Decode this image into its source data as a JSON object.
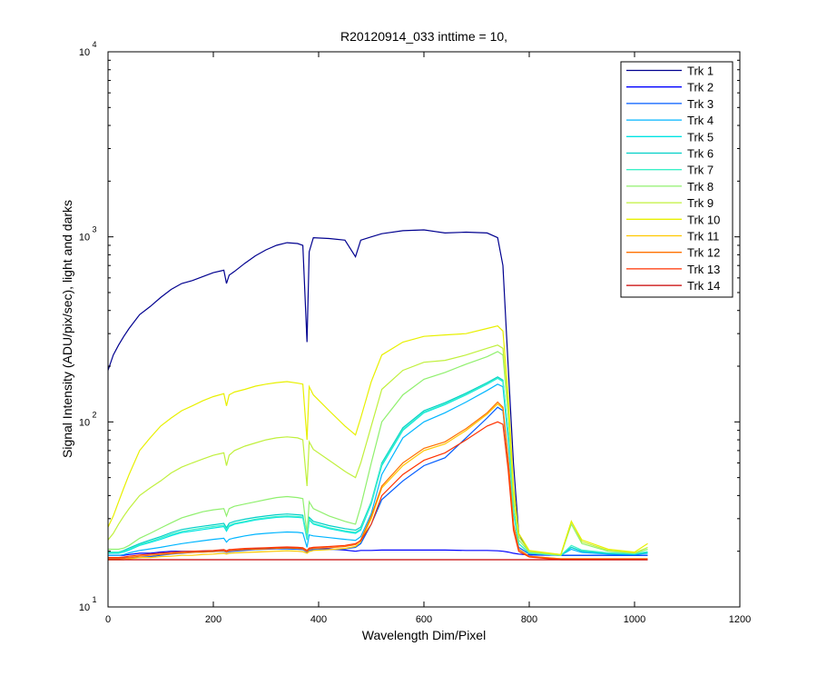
{
  "chart_data": {
    "type": "line",
    "title": "R20120914_033 inttime = 10,",
    "xlabel": "Wavelength Dim/Pixel",
    "ylabel": "Signal Intensity (ADU/pix/sec), light and darks",
    "xlim": [
      0,
      1200
    ],
    "ylim": [
      10,
      10000
    ],
    "yscale": "log",
    "grid": false,
    "legend_position": "top-right",
    "x_ticks": [
      0,
      200,
      400,
      600,
      800,
      1000,
      1200
    ],
    "y_ticks": [
      {
        "base": "10",
        "exp": "1",
        "value": 10
      },
      {
        "base": "10",
        "exp": "2",
        "value": 100
      },
      {
        "base": "10",
        "exp": "3",
        "value": 1000
      },
      {
        "base": "10",
        "exp": "4",
        "value": 10000
      }
    ],
    "x_sample": [
      0,
      10,
      20,
      30,
      40,
      60,
      80,
      100,
      120,
      140,
      160,
      180,
      200,
      220,
      225,
      230,
      240,
      260,
      280,
      300,
      320,
      340,
      360,
      370,
      378,
      382,
      390,
      420,
      450,
      470,
      480,
      500,
      520,
      560,
      600,
      640,
      680,
      720,
      740,
      750,
      760,
      770,
      780,
      800,
      860,
      880,
      900,
      950,
      1000,
      1025
    ],
    "series": [
      {
        "name": "Trk 1",
        "color": "#00008f",
        "values": [
          190,
          230,
          260,
          290,
          320,
          380,
          420,
          470,
          520,
          560,
          580,
          610,
          640,
          660,
          560,
          620,
          650,
          720,
          790,
          850,
          900,
          930,
          920,
          900,
          270,
          830,
          990,
          980,
          960,
          780,
          960,
          1000,
          1040,
          1080,
          1090,
          1050,
          1060,
          1050,
          990,
          700,
          200,
          60,
          25,
          19.5,
          19,
          19,
          19,
          19,
          19,
          19
        ]
      },
      {
        "name": "Trk 2",
        "color": "#0000ff",
        "values": [
          19,
          19,
          19,
          19,
          19.2,
          19.5,
          19.5,
          19.8,
          20,
          20,
          20,
          20,
          20.1,
          20.2,
          19.9,
          20.2,
          20.2,
          20.5,
          20.6,
          20.7,
          20.8,
          20.9,
          20.8,
          20.8,
          19.8,
          20.6,
          20.8,
          20.6,
          20.3,
          20,
          20.2,
          20.2,
          20.3,
          20.3,
          20.3,
          20.3,
          20.2,
          20.2,
          20.1,
          20,
          19.8,
          19.5,
          19.3,
          19.1,
          19,
          19,
          19,
          19,
          19,
          19
        ]
      },
      {
        "name": "Trk 3",
        "color": "#005bff",
        "values": [
          18.5,
          18.5,
          18.5,
          18.5,
          18.5,
          18.5,
          18.7,
          19,
          19.3,
          19.5,
          19.7,
          19.8,
          19.9,
          20,
          19.7,
          19.9,
          20,
          20.2,
          20.4,
          20.5,
          20.6,
          20.6,
          20.5,
          20.4,
          19.8,
          20.3,
          20.4,
          20.4,
          20.6,
          21,
          22,
          28,
          38,
          48,
          58,
          64,
          82,
          105,
          120,
          115,
          60,
          28,
          21,
          19.3,
          19,
          19,
          19,
          19,
          19,
          19
        ]
      },
      {
        "name": "Trk 4",
        "color": "#00b5ff",
        "values": [
          19,
          19,
          19,
          19.2,
          19.6,
          20.2,
          20.6,
          21,
          21.5,
          22,
          22.4,
          22.8,
          23.2,
          23.5,
          22.4,
          23.2,
          23.6,
          24.2,
          24.7,
          25,
          25.2,
          25.4,
          25.3,
          25.1,
          21,
          24.5,
          24.2,
          23.7,
          23.2,
          22.9,
          24,
          32,
          52,
          82,
          100,
          112,
          128,
          148,
          160,
          155,
          80,
          32,
          22,
          19.5,
          19,
          20.5,
          19.7,
          19.3,
          19.2,
          19.5
        ]
      },
      {
        "name": "Trk 5",
        "color": "#00e4e4",
        "values": [
          19.5,
          19.5,
          19.5,
          19.8,
          20.3,
          21.5,
          22.3,
          23.2,
          24.3,
          25.2,
          25.7,
          26.2,
          26.7,
          27.2,
          25.7,
          27.2,
          28,
          28.7,
          29.5,
          30,
          30.5,
          30.7,
          30.5,
          30.3,
          23,
          29.5,
          28,
          26.5,
          25.5,
          25,
          26,
          36,
          58,
          90,
          112,
          124,
          140,
          160,
          172,
          165,
          85,
          33,
          22,
          19.5,
          19,
          21,
          20,
          19.5,
          19.3,
          19.7
        ]
      },
      {
        "name": "Trk 6",
        "color": "#00d0c8",
        "values": [
          19.8,
          19.8,
          19.8,
          20.2,
          20.8,
          22,
          23,
          24,
          25.2,
          26.2,
          26.8,
          27.3,
          27.8,
          28.3,
          26.8,
          28.3,
          29,
          29.8,
          30.5,
          31,
          31.5,
          31.8,
          31.5,
          31.3,
          23.5,
          30.5,
          29,
          27.5,
          26.5,
          26,
          27,
          37,
          60,
          93,
          115,
          127,
          143,
          163,
          175,
          168,
          86,
          33,
          22,
          19.5,
          19,
          21,
          20,
          19.5,
          19.3,
          19.7
        ]
      },
      {
        "name": "Trk 7",
        "color": "#3cf0c8",
        "values": [
          19.8,
          19.8,
          19.8,
          20,
          20.5,
          21.7,
          22.6,
          23.6,
          24.7,
          25.6,
          26.2,
          26.7,
          27.2,
          27.6,
          26.2,
          27.6,
          28.3,
          29,
          29.8,
          30.3,
          30.8,
          31,
          30.8,
          30.6,
          23.2,
          29.8,
          28.3,
          26.8,
          25.8,
          25.3,
          26.4,
          36.5,
          59,
          91,
          113,
          125,
          141,
          161,
          173,
          166,
          85,
          33,
          22,
          19.5,
          19,
          21.5,
          20.3,
          19.6,
          19.4,
          19.9
        ]
      },
      {
        "name": "Trk 8",
        "color": "#90f06e",
        "values": [
          20.5,
          20.5,
          20.5,
          20.8,
          21.5,
          23.5,
          25,
          26.7,
          28.5,
          30.3,
          31.5,
          32.7,
          33.5,
          34,
          31,
          34,
          35,
          36,
          37,
          38,
          39,
          39.5,
          39,
          38.5,
          25,
          37,
          34,
          31,
          29,
          28,
          35,
          60,
          100,
          140,
          170,
          185,
          205,
          225,
          240,
          230,
          110,
          38,
          23,
          19.8,
          19,
          28,
          22,
          20,
          19.5,
          20.5
        ]
      },
      {
        "name": "Trk 9",
        "color": "#c0f03c",
        "values": [
          23,
          25,
          28,
          31,
          34,
          40,
          44,
          48,
          53,
          57,
          60,
          63,
          66,
          68,
          58,
          66,
          70,
          74,
          77,
          80,
          82,
          83,
          82,
          80,
          45,
          78,
          71,
          62,
          54,
          50,
          60,
          95,
          150,
          190,
          210,
          215,
          230,
          250,
          260,
          250,
          120,
          40,
          24,
          20,
          19.2,
          29,
          22.5,
          20.2,
          19.6,
          21
        ]
      },
      {
        "name": "Trk 10",
        "color": "#e8f000",
        "values": [
          27,
          31,
          37,
          44,
          52,
          70,
          82,
          95,
          105,
          115,
          122,
          130,
          137,
          142,
          122,
          140,
          145,
          150,
          156,
          160,
          163,
          165,
          162,
          160,
          80,
          155,
          140,
          115,
          95,
          85,
          105,
          165,
          230,
          270,
          290,
          295,
          300,
          320,
          330,
          310,
          140,
          45,
          25,
          20.2,
          19.2,
          29,
          23,
          20.5,
          19.8,
          22
        ]
      },
      {
        "name": "Trk 11",
        "color": "#ffc800",
        "values": [
          18,
          18,
          18,
          18,
          18.2,
          18.5,
          18.5,
          18.7,
          18.8,
          19,
          19,
          19.2,
          19.3,
          19.5,
          19.3,
          19.5,
          19.6,
          19.7,
          19.8,
          19.9,
          20,
          20.1,
          20,
          19.9,
          19.5,
          19.9,
          20.2,
          20.4,
          20.7,
          21.2,
          22.5,
          30,
          44,
          58,
          70,
          76,
          90,
          110,
          125,
          118,
          62,
          28,
          20.5,
          18.8,
          18.2,
          18.2,
          18.2,
          18.2,
          18.2,
          18.2
        ]
      },
      {
        "name": "Trk 12",
        "color": "#ff7000",
        "values": [
          18.2,
          18.2,
          18.2,
          18.3,
          18.5,
          18.8,
          19,
          19.2,
          19.4,
          19.6,
          19.7,
          19.8,
          19.9,
          20.1,
          19.8,
          20.1,
          20.2,
          20.4,
          20.5,
          20.6,
          20.7,
          20.8,
          20.7,
          20.6,
          19.9,
          20.5,
          20.7,
          20.9,
          21.2,
          21.7,
          23,
          31,
          45,
          60,
          72,
          78,
          92,
          112,
          128,
          120,
          63,
          28,
          20.5,
          18.8,
          18.2,
          18.2,
          18.2,
          18.2,
          18.2,
          18.2
        ]
      },
      {
        "name": "Trk 13",
        "color": "#ff3200",
        "values": [
          18.5,
          18.5,
          18.5,
          18.6,
          18.8,
          19.1,
          19.3,
          19.5,
          19.7,
          19.9,
          20,
          20.1,
          20.2,
          20.4,
          20.1,
          20.4,
          20.5,
          20.7,
          20.8,
          20.9,
          21,
          21.1,
          21,
          20.9,
          20.2,
          20.8,
          21,
          21.2,
          21.5,
          22,
          22.8,
          28,
          40,
          52,
          62,
          68,
          80,
          95,
          100,
          97,
          55,
          26,
          20,
          18.6,
          18,
          18,
          18,
          18,
          18,
          18
        ]
      },
      {
        "name": "Trk 14",
        "color": "#c80000",
        "values": [
          18,
          18,
          18,
          18,
          18,
          18,
          18,
          18,
          18,
          18,
          18,
          18,
          18,
          18,
          18,
          18,
          18,
          18,
          18,
          18,
          18,
          18,
          18,
          18,
          18,
          18,
          18,
          18,
          18,
          18,
          18,
          18,
          18,
          18,
          18,
          18,
          18,
          18,
          18,
          18,
          18,
          18,
          18,
          18,
          18,
          18,
          18,
          18,
          18,
          18
        ]
      }
    ]
  }
}
